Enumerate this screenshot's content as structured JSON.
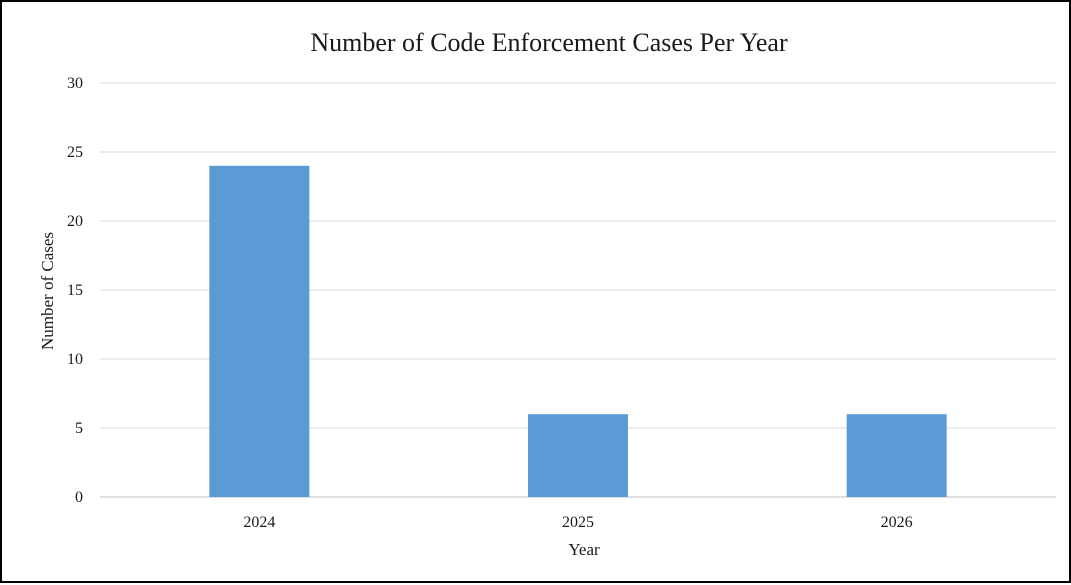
{
  "chart_data": {
    "type": "bar",
    "title": "Number of Code Enforcement Cases Per Year",
    "xlabel": "Year",
    "ylabel": "Number of Cases",
    "categories": [
      "2024",
      "2025",
      "2026"
    ],
    "values": [
      24,
      6,
      6
    ],
    "ylim": [
      0,
      30
    ],
    "yticks": [
      "0",
      "5",
      "10",
      "15",
      "20",
      "25",
      "30"
    ],
    "grid": true,
    "legend": "none",
    "bar_color": "#5b9bd5"
  }
}
